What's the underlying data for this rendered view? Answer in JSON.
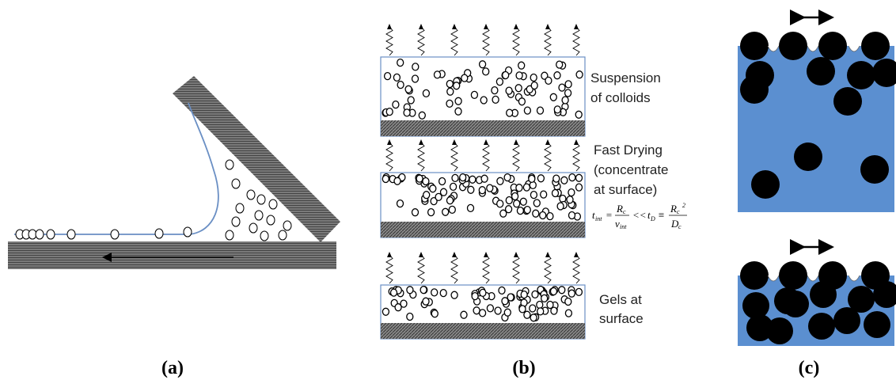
{
  "panels": {
    "a": {
      "label": "(a)"
    },
    "b": {
      "label": "(b)",
      "annotations": [
        [
          "Suspension",
          "of colloids"
        ],
        [
          "Fast Drying",
          "(concentrate",
          "at surface)"
        ],
        [
          "Gels at",
          "surface"
        ]
      ],
      "equation": [
        "t",
        "int",
        "=",
        "R",
        "c",
        "v",
        "int",
        "<<",
        "t",
        "D",
        "≡",
        "R",
        "c",
        "2",
        "D",
        "c"
      ]
    },
    "c": {
      "label": "(c)"
    }
  }
}
